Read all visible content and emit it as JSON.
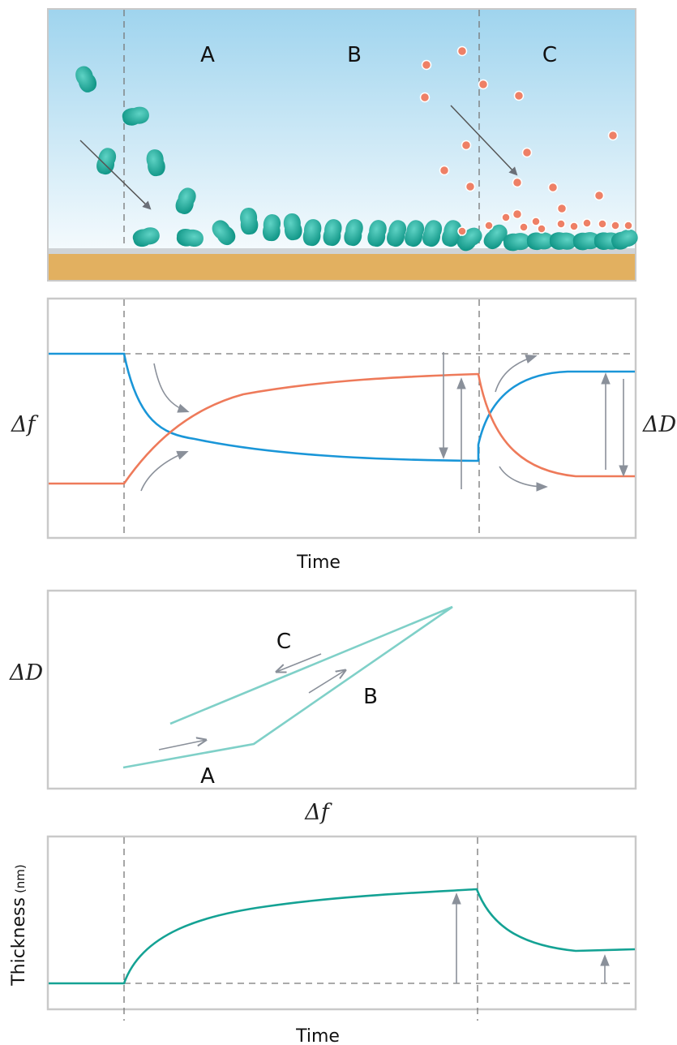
{
  "panel1": {
    "region_labels": [
      "A",
      "B",
      "C"
    ]
  },
  "panel2": {
    "y_left_label": "Δf",
    "y_right_label": "ΔD",
    "x_label": "Time"
  },
  "panel3": {
    "y_label": "ΔD",
    "x_label": "Δf",
    "segment_labels": [
      "A",
      "B",
      "C"
    ]
  },
  "panel4": {
    "y_label": "Thickness",
    "y_unit": "(nm)",
    "x_label": "Time"
  },
  "colors": {
    "protein": "#1aa597",
    "particle": "#ee8066",
    "substrate": "#e2b060",
    "frequency_curve": "#1a96d8",
    "dissipation_curve": "#ee7a5a",
    "df_dd_curve": "#7fd0c8",
    "thickness_curve": "#14a294",
    "arrow": "#8a909a"
  }
}
